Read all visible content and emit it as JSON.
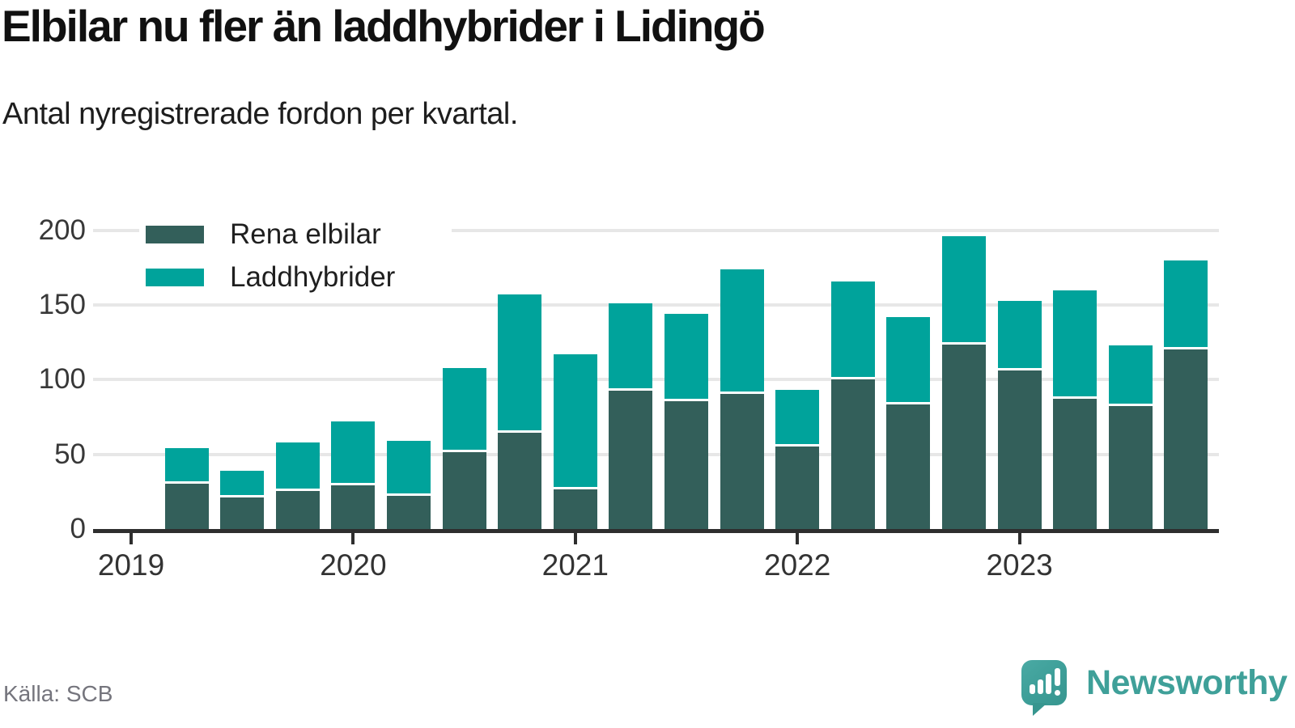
{
  "header": {
    "title": "Elbilar nu fler än laddhybrider i Lidingö",
    "subtitle": "Antal nyregistrerade fordon per kvartal."
  },
  "legend": [
    {
      "label": "Rena elbilar",
      "color": "#335F5A"
    },
    {
      "label": "Laddhybrider",
      "color": "#00A39B"
    }
  ],
  "chart_data": {
    "type": "bar",
    "stacked": true,
    "title": "Elbilar nu fler än laddhybrider i Lidingö",
    "subtitle": "Antal nyregistrerade fordon per kvartal.",
    "categories": [
      "2019 K1",
      "2019 K2",
      "2019 K3",
      "2019 K4",
      "2020 K1",
      "2020 K2",
      "2020 K3",
      "2020 K4",
      "2021 K1",
      "2021 K2",
      "2021 K3",
      "2021 K4",
      "2022 K1",
      "2022 K2",
      "2022 K3",
      "2022 K4",
      "2023 K1",
      "2023 K2",
      "2023 K3"
    ],
    "series": [
      {
        "name": "Rena elbilar",
        "color": "#335F5A",
        "values": [
          32,
          23,
          27,
          31,
          24,
          53,
          66,
          28,
          94,
          87,
          92,
          57,
          102,
          85,
          125,
          108,
          89,
          84,
          122
        ]
      },
      {
        "name": "Laddhybrider",
        "color": "#00A39B",
        "values": [
          22,
          16,
          31,
          41,
          35,
          55,
          91,
          89,
          57,
          57,
          82,
          36,
          64,
          57,
          71,
          45,
          71,
          39,
          58
        ]
      }
    ],
    "totals": [
      54,
      39,
      58,
      72,
      59,
      108,
      157,
      117,
      151,
      144,
      174,
      93,
      166,
      142,
      196,
      153,
      160,
      123,
      180
    ],
    "ylim": [
      0,
      200
    ],
    "y_ticks": [
      0,
      50,
      100,
      150,
      200
    ],
    "x_tick_labels": [
      "2019",
      "2020",
      "2021",
      "2022",
      "2023"
    ],
    "grid": true,
    "legend_position": "top-left"
  },
  "footer": {
    "source": "Källa: SCB",
    "brand": "Newsworthy"
  },
  "colors": {
    "pure_ev": "#335F5A",
    "plugin_hybrid": "#00A39B",
    "gridline": "#E7E7E7",
    "axis": "#2E2E2E",
    "brand_teal": "#3FA099"
  }
}
